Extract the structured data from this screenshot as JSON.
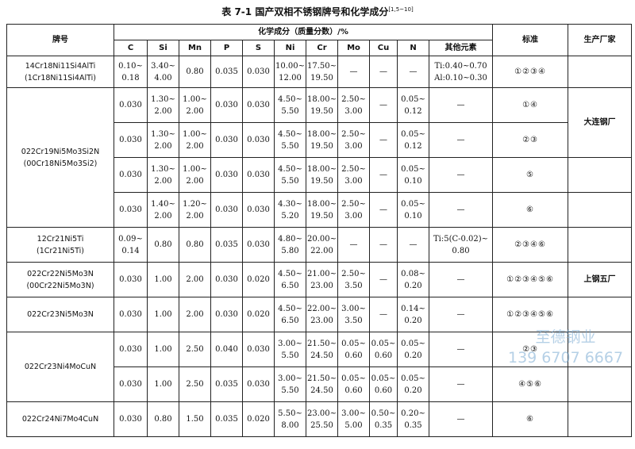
{
  "header": {
    "title": "表 7-1  国产双相不锈钢牌号和化学成分",
    "title_ref": "[1,5~10]",
    "col_grade": "牌号",
    "col_group": "化学成分（质量分数）/%",
    "columns": [
      "C",
      "Si",
      "Mn",
      "P",
      "S",
      "Ni",
      "Cr",
      "Mo",
      "Cu",
      "N",
      "其他元素"
    ],
    "col_standard": "标准",
    "col_maker": "生产厂家"
  },
  "groups": [
    {
      "grade": [
        "14Cr18Ni11Si4AlTi",
        "(1Cr18Ni11Si4AlTi)"
      ],
      "rows": [
        {
          "values": [
            [
              "0.10~",
              "0.18"
            ],
            [
              "3.40~",
              "4.00"
            ],
            "0.80",
            "0.035",
            "0.030",
            [
              "10.00~",
              "12.00"
            ],
            [
              "17.50~",
              "19.50"
            ],
            "—",
            "—",
            "—",
            [
              "Ti:0.40~0.70",
              "Al:0.10~0.30"
            ]
          ],
          "standard": "①②③④"
        }
      ]
    },
    {
      "grade": [
        "022Cr19Ni5Mo3Si2N",
        "(00Cr18Ni5Mo3Si2)"
      ],
      "rows": [
        {
          "values": [
            "0.030",
            [
              "1.30~",
              "2.00"
            ],
            [
              "1.00~",
              "2.00"
            ],
            "0.030",
            "0.030",
            [
              "4.50~",
              "5.50"
            ],
            [
              "18.00~",
              "19.50"
            ],
            [
              "2.50~",
              "3.00"
            ],
            "—",
            [
              "0.05~",
              "0.12"
            ],
            "—"
          ],
          "standard": "①④"
        },
        {
          "values": [
            "0.030",
            [
              "1.30~",
              "2.00"
            ],
            [
              "1.00~",
              "2.00"
            ],
            "0.030",
            "0.030",
            [
              "4.50~",
              "5.50"
            ],
            [
              "18.00~",
              "19.50"
            ],
            [
              "2.50~",
              "3.00"
            ],
            "—",
            [
              "0.05~",
              "0.12"
            ],
            "—"
          ],
          "standard": "②③"
        },
        {
          "values": [
            "0.030",
            [
              "1.30~",
              "2.00"
            ],
            [
              "1.00~",
              "2.00"
            ],
            "0.030",
            "0.030",
            [
              "4.50~",
              "5.50"
            ],
            [
              "18.00~",
              "19.50"
            ],
            [
              "2.50~",
              "3.00"
            ],
            "—",
            [
              "0.05~",
              "0.10"
            ],
            "—"
          ],
          "standard": "⑤"
        },
        {
          "values": [
            "0.030",
            [
              "1.40~",
              "2.00"
            ],
            [
              "1.20~",
              "2.00"
            ],
            "0.030",
            "0.030",
            [
              "4.30~",
              "5.20"
            ],
            [
              "18.00~",
              "19.50"
            ],
            [
              "2.50~",
              "3.00"
            ],
            "—",
            [
              "0.05~",
              "0.10"
            ],
            "—"
          ],
          "standard": "⑥"
        }
      ]
    },
    {
      "grade": [
        "12Cr21Ni5Ti",
        "(1Cr21Ni5Ti)"
      ],
      "rows": [
        {
          "values": [
            [
              "0.09~",
              "0.14"
            ],
            "0.80",
            "0.80",
            "0.035",
            "0.030",
            [
              "4.80~",
              "5.80"
            ],
            [
              "20.00~",
              "22.00"
            ],
            "—",
            "—",
            "—",
            [
              "Ti:5(C-0.02)~",
              "0.80"
            ]
          ],
          "standard": "②③④⑥"
        }
      ]
    },
    {
      "grade": [
        "022Cr22Ni5Mo3N",
        "(00Cr22Ni5Mo3N)"
      ],
      "rows": [
        {
          "values": [
            "0.030",
            "1.00",
            "2.00",
            "0.030",
            "0.020",
            [
              "4.50~",
              "6.50"
            ],
            [
              "21.00~",
              "23.00"
            ],
            [
              "2.50~",
              "3.50"
            ],
            "—",
            [
              "0.08~",
              "0.20"
            ],
            "—"
          ],
          "standard": "①②③④⑤⑥"
        }
      ]
    },
    {
      "grade": [
        "022Cr23Ni5Mo3N"
      ],
      "rows": [
        {
          "values": [
            "0.030",
            "1.00",
            "2.00",
            "0.030",
            "0.020",
            [
              "4.50~",
              "6.50"
            ],
            [
              "22.00~",
              "23.00"
            ],
            [
              "3.00~",
              "3.50"
            ],
            "—",
            [
              "0.14~",
              "0.20"
            ],
            "—"
          ],
          "standard": "①②③④⑤⑥"
        }
      ]
    },
    {
      "grade": [
        "022Cr23Ni4MoCuN"
      ],
      "rows": [
        {
          "values": [
            "0.030",
            "1.00",
            "2.50",
            "0.040",
            "0.030",
            [
              "3.00~",
              "5.50"
            ],
            [
              "21.50~",
              "24.50"
            ],
            [
              "0.05~",
              "0.60"
            ],
            [
              "0.05~",
              "0.60"
            ],
            [
              "0.05~",
              "0.20"
            ],
            "—"
          ],
          "standard": "②③"
        },
        {
          "values": [
            "0.030",
            "1.00",
            "2.50",
            "0.035",
            "0.030",
            [
              "3.00~",
              "5.50"
            ],
            [
              "21.50~",
              "24.50"
            ],
            [
              "0.05~",
              "0.60"
            ],
            [
              "0.05~",
              "0.60"
            ],
            [
              "0.05~",
              "0.20"
            ],
            "—"
          ],
          "standard": "④⑤⑥"
        }
      ]
    },
    {
      "grade": [
        "022Cr24Ni7Mo4CuN"
      ],
      "rows": [
        {
          "values": [
            "0.030",
            "0.80",
            "1.50",
            "0.035",
            "0.020",
            [
              "5.50~",
              "8.00"
            ],
            [
              "23.00~",
              "25.50"
            ],
            [
              "3.00~",
              "5.00"
            ],
            [
              "0.50~",
              "0.35"
            ],
            [
              "0.20~",
              "0.35"
            ],
            "—"
          ],
          "standard": "⑥"
        }
      ]
    }
  ],
  "makers": [
    "大连钢厂",
    "上钢五厂"
  ],
  "watermark": [
    "至德钢业",
    "139 6707 6667"
  ]
}
